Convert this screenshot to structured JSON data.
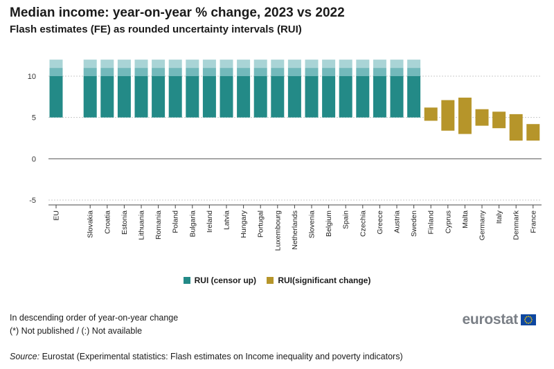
{
  "chart_data": {
    "type": "bar",
    "subtype": "floating-range",
    "title": "Median income: year-on-year % change, 2023 vs 2022",
    "subtitle": "Flash estimates (FE) as rounded uncertainty intervals (RUI)",
    "ylim": [
      -5,
      12
    ],
    "yticks": [
      -5,
      0,
      5,
      10
    ],
    "categories": [
      "EU",
      "",
      "Slovakia",
      "Croatia",
      "Estonia",
      "Lithuania",
      "Romania",
      "Poland",
      "Bulgaria",
      "Ireland",
      "Latvia",
      "Hungary",
      "Portugal",
      "Luxembourg",
      "Netherlands",
      "Slovenia",
      "Belgium",
      "Spain",
      "Czechia",
      "Greece",
      "Austria",
      "Sweden",
      "Finland",
      "Cyprus",
      "Malta",
      "Germany",
      "Italy",
      "Denmark",
      "France"
    ],
    "series": [
      {
        "name": "RUI (censor up)",
        "color": "#238a87",
        "lightColors": [
          "#73b9bb",
          "#a9d4d6"
        ],
        "ranges": [
          [
            5,
            12
          ],
          null,
          [
            5,
            12
          ],
          [
            5,
            12
          ],
          [
            5,
            12
          ],
          [
            5,
            12
          ],
          [
            5,
            12
          ],
          [
            5,
            12
          ],
          [
            5,
            12
          ],
          [
            5,
            12
          ],
          [
            5,
            12
          ],
          [
            5,
            12
          ],
          [
            5,
            12
          ],
          [
            5,
            12
          ],
          [
            5,
            12
          ],
          [
            5,
            12
          ],
          [
            5,
            12
          ],
          [
            5,
            12
          ],
          [
            5,
            12
          ],
          [
            5,
            12
          ],
          [
            5,
            12
          ],
          [
            5,
            12
          ],
          null,
          null,
          null,
          null,
          null,
          null,
          null
        ]
      },
      {
        "name": "RUI(significant change)",
        "color": "#b6952a",
        "ranges": [
          null,
          null,
          null,
          null,
          null,
          null,
          null,
          null,
          null,
          null,
          null,
          null,
          null,
          null,
          null,
          null,
          null,
          null,
          null,
          null,
          null,
          null,
          [
            4.6,
            6.2
          ],
          [
            3.4,
            7.1
          ],
          [
            3.0,
            7.4
          ],
          [
            4.0,
            6.0
          ],
          [
            3.7,
            5.7
          ],
          [
            2.2,
            5.4
          ],
          [
            2.2,
            4.2
          ]
        ]
      }
    ],
    "legend": [
      "RUI (censor up)",
      "RUI(significant change)"
    ],
    "legend_position": "bottom"
  },
  "notes": {
    "order": "In descending order of year-on-year change",
    "symbols": "(*) Not published / (:) Not available"
  },
  "source": {
    "label": "Source:",
    "text": " Eurostat (Experimental statistics: Flash estimates on Income inequality and poverty indicators)"
  },
  "logo": {
    "text": "eurostat"
  }
}
